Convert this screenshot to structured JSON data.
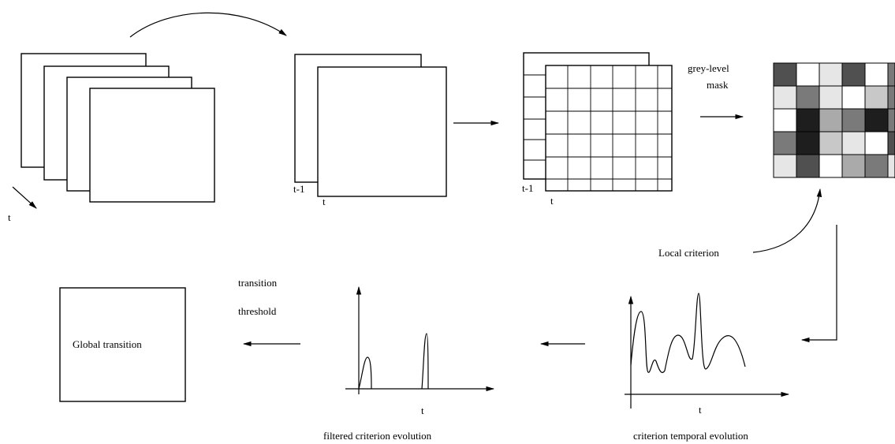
{
  "stage1": {
    "time_label": "t"
  },
  "stage2": {
    "prev_label": "t-1",
    "curr_label": "t"
  },
  "stage3": {
    "prev_label": "t-1",
    "curr_label": "t"
  },
  "mask": {
    "title_line1": "grey-level",
    "title_line2": "mask",
    "cells": [
      [
        "#505050",
        "#ffffff",
        "#e6e6e6",
        "#505050",
        "#ffffff",
        "#7a7a7a"
      ],
      [
        "#e6e6e6",
        "#7a7a7a",
        "#e6e6e6",
        "#ffffff",
        "#c8c8c8",
        "#7a7a7a"
      ],
      [
        "#ffffff",
        "#1e1e1e",
        "#aaaaaa",
        "#7a7a7a",
        "#1e1e1e",
        "#7a7a7a"
      ],
      [
        "#7a7a7a",
        "#1e1e1e",
        "#c8c8c8",
        "#e6e6e6",
        "#ffffff",
        "#505050"
      ],
      [
        "#e6e6e6",
        "#505050",
        "#ffffff",
        "#aaaaaa",
        "#7a7a7a",
        "#e6e6e6"
      ]
    ]
  },
  "local_criterion_label": "Local criterion",
  "temporal_plot": {
    "x_label": "t",
    "caption": "criterion temporal evolution"
  },
  "filtered_plot": {
    "x_label": "t",
    "caption": "filtered criterion evolution"
  },
  "threshold": {
    "line1": "transition",
    "line2": "threshold"
  },
  "output_box": {
    "label": "Global transition"
  }
}
